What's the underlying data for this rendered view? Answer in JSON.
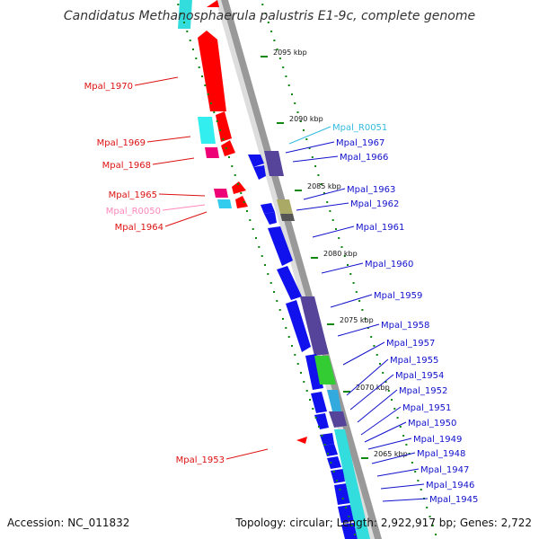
{
  "title": "Candidatus Methanosphaerula palustris E1-9c, complete genome",
  "accession": "Accession: NC_011832",
  "summary": "Topology: circular; Length: 2,922,917 bp; Genes: 2,722",
  "colors": {
    "forward": "#ff0000",
    "reverse": "#1010ee",
    "rna_fwd": "#ff66aa",
    "rna_rev": "#33ccee",
    "backbone": "#999999",
    "tick": "#118811"
  },
  "kbp_ticks": [
    "2095 kbp",
    "2090 kbp",
    "2085 kbp",
    "2080 kbp",
    "2075 kbp",
    "2070 kbp",
    "2065 kbp"
  ],
  "left_labels": [
    {
      "text": "Mpal_1970",
      "color": "#dd1111"
    },
    {
      "text": "Mpal_1969",
      "color": "#dd1111"
    },
    {
      "text": "Mpal_1968",
      "color": "#dd1111"
    },
    {
      "text": "Mpal_1965",
      "color": "#dd1111"
    },
    {
      "text": "Mpal_R0050",
      "color": "#ff88bb"
    },
    {
      "text": "Mpal_1964",
      "color": "#dd1111"
    },
    {
      "text": "Mpal_1953",
      "color": "#dd1111"
    }
  ],
  "right_labels": [
    {
      "text": "Mpal_R0051",
      "color": "#33bbdd"
    },
    {
      "text": "Mpal_1967",
      "color": "#1111cc"
    },
    {
      "text": "Mpal_1966",
      "color": "#1111cc"
    },
    {
      "text": "Mpal_1963",
      "color": "#1111cc"
    },
    {
      "text": "Mpal_1962",
      "color": "#1111cc"
    },
    {
      "text": "Mpal_1961",
      "color": "#1111cc"
    },
    {
      "text": "Mpal_1960",
      "color": "#1111cc"
    },
    {
      "text": "Mpal_1959",
      "color": "#1111cc"
    },
    {
      "text": "Mpal_1958",
      "color": "#1111cc"
    },
    {
      "text": "Mpal_1957",
      "color": "#1111cc"
    },
    {
      "text": "Mpal_1955",
      "color": "#1111cc"
    },
    {
      "text": "Mpal_1954",
      "color": "#1111cc"
    },
    {
      "text": "Mpal_1952",
      "color": "#1111cc"
    },
    {
      "text": "Mpal_1951",
      "color": "#1111cc"
    },
    {
      "text": "Mpal_1950",
      "color": "#1111cc"
    },
    {
      "text": "Mpal_1949",
      "color": "#1111cc"
    },
    {
      "text": "Mpal_1948",
      "color": "#1111cc"
    },
    {
      "text": "Mpal_1947",
      "color": "#1111cc"
    },
    {
      "text": "Mpal_1946",
      "color": "#1111cc"
    },
    {
      "text": "Mpal_1945",
      "color": "#1111cc"
    }
  ]
}
